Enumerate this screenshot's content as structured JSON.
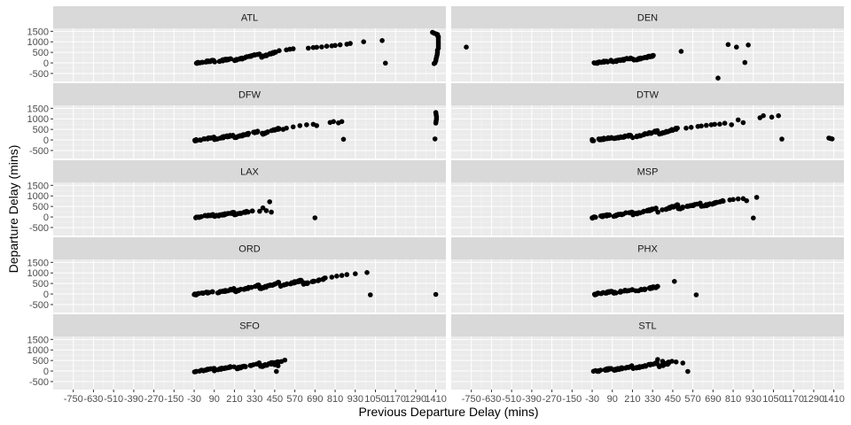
{
  "chart_data": {
    "type": "scatter",
    "xlabel": "Previous Departure Delay (mins)",
    "ylabel": "Departure Delay (mins)",
    "xlim": [
      -870,
      1470
    ],
    "ylim": [
      -880,
      1640
    ],
    "x_ticks": [
      -750,
      -630,
      -510,
      -390,
      -270,
      -150,
      -30,
      90,
      210,
      330,
      450,
      570,
      690,
      810,
      930,
      1050,
      1170,
      1290,
      1410
    ],
    "x_tick_labels": [
      "-750",
      "-630",
      "-510",
      "-390",
      "-270",
      "-150",
      "-30",
      "90",
      "210",
      "330",
      "450",
      "570",
      "690",
      "810",
      "930",
      "1050",
      "1170",
      "1290",
      "1410"
    ],
    "y_ticks": [
      -500,
      0,
      500,
      1000,
      1500
    ],
    "y_tick_labels": [
      "-500",
      "0",
      "500",
      "1000",
      "1500"
    ],
    "grid": true,
    "panel_background": "#ebebeb",
    "strip_background": "#d9d9d9",
    "point_color": "#000000",
    "facets": [
      {
        "label": "ATL",
        "bands": [
          [
            -30,
            90,
            -30,
            120
          ],
          [
            90,
            210,
            40,
            240
          ],
          [
            210,
            360,
            120,
            420
          ],
          [
            360,
            480,
            260,
            580
          ]
        ],
        "points": [
          [
            520,
            620
          ],
          [
            540,
            650
          ],
          [
            560,
            670
          ],
          [
            650,
            700
          ],
          [
            680,
            730
          ],
          [
            700,
            740
          ],
          [
            730,
            760
          ],
          [
            760,
            790
          ],
          [
            790,
            810
          ],
          [
            810,
            830
          ],
          [
            840,
            860
          ],
          [
            880,
            890
          ],
          [
            900,
            920
          ],
          [
            980,
            1000
          ],
          [
            1090,
            1060
          ],
          [
            1110,
            -10
          ],
          [
            1390,
            1450
          ],
          [
            1400,
            1410
          ],
          [
            1410,
            1380
          ],
          [
            1420,
            1350
          ],
          [
            1420,
            1300
          ],
          [
            1425,
            1250
          ],
          [
            1425,
            1200
          ],
          [
            1425,
            1100
          ],
          [
            1425,
            1000
          ],
          [
            1425,
            900
          ],
          [
            1425,
            800
          ],
          [
            1425,
            700
          ],
          [
            1420,
            600
          ],
          [
            1420,
            500
          ],
          [
            1418,
            400
          ],
          [
            1415,
            300
          ],
          [
            1412,
            200
          ],
          [
            1410,
            100
          ],
          [
            1405,
            0
          ],
          [
            1400,
            -30
          ]
        ]
      },
      {
        "label": "DEN",
        "bands": [
          [
            -30,
            90,
            -30,
            110
          ],
          [
            90,
            210,
            50,
            230
          ],
          [
            210,
            360,
            130,
            380
          ]
        ],
        "points": [
          [
            -780,
            750
          ],
          [
            500,
            550
          ],
          [
            720,
            -720
          ],
          [
            780,
            870
          ],
          [
            830,
            750
          ],
          [
            880,
            20
          ],
          [
            900,
            850
          ]
        ]
      },
      {
        "label": "DFW",
        "bands": [
          [
            -30,
            90,
            -30,
            120
          ],
          [
            90,
            210,
            40,
            240
          ],
          [
            210,
            360,
            120,
            420
          ],
          [
            360,
            480,
            250,
            550
          ]
        ],
        "points": [
          [
            500,
            500
          ],
          [
            520,
            560
          ],
          [
            560,
            620
          ],
          [
            600,
            680
          ],
          [
            640,
            720
          ],
          [
            680,
            740
          ],
          [
            700,
            680
          ],
          [
            780,
            830
          ],
          [
            800,
            870
          ],
          [
            830,
            810
          ],
          [
            850,
            870
          ],
          [
            860,
            30
          ],
          [
            1410,
            1300
          ],
          [
            1412,
            1200
          ],
          [
            1414,
            1100
          ],
          [
            1414,
            1000
          ],
          [
            1412,
            900
          ],
          [
            1410,
            800
          ],
          [
            1405,
            50
          ]
        ]
      },
      {
        "label": "DTW",
        "bands": [
          [
            -30,
            90,
            -30,
            120
          ],
          [
            90,
            210,
            40,
            240
          ],
          [
            210,
            360,
            120,
            420
          ],
          [
            360,
            480,
            250,
            560
          ]
        ],
        "points": [
          [
            -30,
            20
          ],
          [
            470,
            500
          ],
          [
            530,
            560
          ],
          [
            560,
            600
          ],
          [
            600,
            640
          ],
          [
            620,
            660
          ],
          [
            650,
            690
          ],
          [
            680,
            720
          ],
          [
            700,
            740
          ],
          [
            730,
            750
          ],
          [
            760,
            790
          ],
          [
            800,
            720
          ],
          [
            840,
            950
          ],
          [
            870,
            820
          ],
          [
            970,
            1050
          ],
          [
            990,
            1150
          ],
          [
            1040,
            1080
          ],
          [
            1080,
            1150
          ],
          [
            1100,
            40
          ],
          [
            1380,
            90
          ],
          [
            1390,
            70
          ],
          [
            1400,
            50
          ]
        ]
      },
      {
        "label": "LAX",
        "bands": [
          [
            -30,
            90,
            -30,
            110
          ],
          [
            90,
            210,
            40,
            210
          ],
          [
            210,
            330,
            110,
            330
          ]
        ],
        "points": [
          [
            360,
            270
          ],
          [
            380,
            430
          ],
          [
            400,
            300
          ],
          [
            420,
            720
          ],
          [
            430,
            230
          ],
          [
            690,
            -40
          ]
        ]
      },
      {
        "label": "MSP",
        "bands": [
          [
            -30,
            90,
            -30,
            120
          ],
          [
            90,
            210,
            40,
            240
          ],
          [
            210,
            360,
            120,
            420
          ],
          [
            360,
            480,
            250,
            560
          ],
          [
            480,
            620,
            380,
            660
          ],
          [
            620,
            760,
            500,
            780
          ]
        ],
        "points": [
          [
            -30,
            -40
          ],
          [
            790,
            810
          ],
          [
            810,
            830
          ],
          [
            840,
            860
          ],
          [
            870,
            870
          ],
          [
            890,
            770
          ],
          [
            930,
            -50
          ],
          [
            950,
            930
          ]
        ]
      },
      {
        "label": "ORD",
        "bands": [
          [
            -30,
            90,
            -30,
            120
          ],
          [
            90,
            210,
            40,
            240
          ],
          [
            210,
            360,
            120,
            420
          ],
          [
            360,
            480,
            250,
            560
          ],
          [
            480,
            620,
            380,
            660
          ],
          [
            620,
            760,
            480,
            760
          ]
        ],
        "points": [
          [
            790,
            800
          ],
          [
            820,
            850
          ],
          [
            850,
            880
          ],
          [
            880,
            920
          ],
          [
            930,
            960
          ],
          [
            1000,
            1020
          ],
          [
            1020,
            -40
          ],
          [
            1410,
            -20
          ]
        ]
      },
      {
        "label": "PHX",
        "bands": [
          [
            -30,
            90,
            -30,
            110
          ],
          [
            90,
            210,
            40,
            220
          ],
          [
            210,
            360,
            110,
            360
          ]
        ],
        "points": [
          [
            350,
            300
          ],
          [
            360,
            360
          ],
          [
            460,
            600
          ],
          [
            590,
            -40
          ]
        ]
      },
      {
        "label": "SFO",
        "bands": [
          [
            -30,
            90,
            -30,
            110
          ],
          [
            90,
            210,
            40,
            230
          ],
          [
            210,
            360,
            110,
            370
          ],
          [
            360,
            480,
            200,
            470
          ]
        ],
        "points": [
          [
            430,
            400
          ],
          [
            450,
            300
          ],
          [
            470,
            250
          ],
          [
            490,
            450
          ],
          [
            510,
            520
          ],
          [
            460,
            -20
          ]
        ]
      },
      {
        "label": "STL",
        "bands": [
          [
            -30,
            90,
            -30,
            110
          ],
          [
            90,
            210,
            40,
            230
          ],
          [
            210,
            360,
            110,
            380
          ],
          [
            360,
            450,
            180,
            480
          ]
        ],
        "points": [
          [
            360,
            550
          ],
          [
            390,
            460
          ],
          [
            420,
            320
          ],
          [
            470,
            430
          ],
          [
            510,
            380
          ],
          [
            540,
            -20
          ]
        ]
      }
    ]
  }
}
